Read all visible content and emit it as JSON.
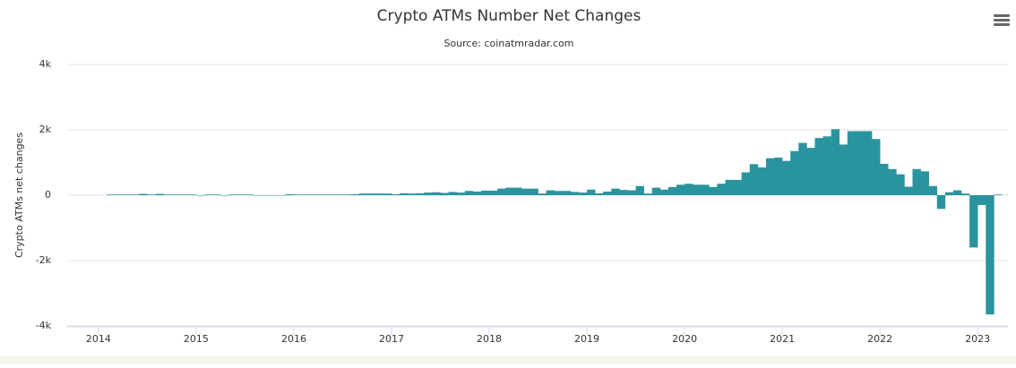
{
  "chart_data": {
    "type": "bar",
    "title": "Crypto ATMs Number Net Changes",
    "subtitle": "Source: coinatmradar.com",
    "y_label": "Crypto ATMs net changes",
    "color": "#2a949e",
    "grid": true,
    "xlim": [
      2013.68,
      2023.31
    ],
    "xticks": [
      2014,
      2015,
      2016,
      2017,
      2018,
      2019,
      2020,
      2021,
      2022,
      2023
    ],
    "ylim": [
      -4000,
      4000
    ],
    "yticks": [
      {
        "value": -4000,
        "label": "-4k"
      },
      {
        "value": -2000,
        "label": "-2k"
      },
      0,
      {
        "value": 2000,
        "label": "2k"
      },
      {
        "value": 4000,
        "label": "4k"
      }
    ],
    "x": [
      "2014-02",
      "2014-03",
      "2014-04",
      "2014-05",
      "2014-06",
      "2014-07",
      "2014-08",
      "2014-09",
      "2014-10",
      "2014-11",
      "2014-12",
      "2015-01",
      "2015-02",
      "2015-03",
      "2015-04",
      "2015-05",
      "2015-06",
      "2015-07",
      "2015-08",
      "2015-09",
      "2015-10",
      "2015-11",
      "2015-12",
      "2016-01",
      "2016-02",
      "2016-03",
      "2016-04",
      "2016-05",
      "2016-06",
      "2016-07",
      "2016-08",
      "2016-09",
      "2016-10",
      "2016-11",
      "2016-12",
      "2017-01",
      "2017-02",
      "2017-03",
      "2017-04",
      "2017-05",
      "2017-06",
      "2017-07",
      "2017-08",
      "2017-09",
      "2017-10",
      "2017-11",
      "2017-12",
      "2018-01",
      "2018-02",
      "2018-03",
      "2018-04",
      "2018-05",
      "2018-06",
      "2018-07",
      "2018-08",
      "2018-09",
      "2018-10",
      "2018-11",
      "2018-12",
      "2019-01",
      "2019-02",
      "2019-03",
      "2019-04",
      "2019-05",
      "2019-06",
      "2019-07",
      "2019-08",
      "2019-09",
      "2019-10",
      "2019-11",
      "2019-12",
      "2020-01",
      "2020-02",
      "2020-03",
      "2020-04",
      "2020-05",
      "2020-06",
      "2020-07",
      "2020-08",
      "2020-09",
      "2020-10",
      "2020-11",
      "2020-12",
      "2021-01",
      "2021-02",
      "2021-03",
      "2021-04",
      "2021-05",
      "2021-06",
      "2021-07",
      "2021-08",
      "2021-09",
      "2021-10",
      "2021-11",
      "2021-12",
      "2022-01",
      "2022-02",
      "2022-03",
      "2022-04",
      "2022-05",
      "2022-06",
      "2022-07",
      "2022-08",
      "2022-09",
      "2022-10",
      "2022-11",
      "2022-12",
      "2023-01",
      "2023-02",
      "2023-03"
    ],
    "values": [
      20,
      20,
      20,
      20,
      40,
      20,
      40,
      20,
      20,
      20,
      20,
      0,
      20,
      20,
      0,
      20,
      20,
      20,
      0,
      0,
      0,
      0,
      30,
      20,
      20,
      20,
      20,
      20,
      20,
      20,
      30,
      50,
      50,
      50,
      50,
      30,
      60,
      50,
      60,
      80,
      90,
      70,
      100,
      80,
      130,
      110,
      140,
      140,
      200,
      230,
      230,
      200,
      200,
      50,
      150,
      130,
      130,
      100,
      80,
      170,
      60,
      110,
      200,
      160,
      150,
      280,
      50,
      230,
      170,
      250,
      320,
      350,
      320,
      320,
      250,
      350,
      470,
      470,
      700,
      950,
      850,
      1130,
      1150,
      1050,
      1350,
      1600,
      1450,
      1750,
      1800,
      2020,
      1550,
      1960,
      1960,
      1960,
      1720,
      960,
      800,
      640,
      260,
      800,
      730,
      280,
      -420,
      90,
      150,
      50,
      -1600,
      -300,
      -3650,
      20
    ]
  }
}
